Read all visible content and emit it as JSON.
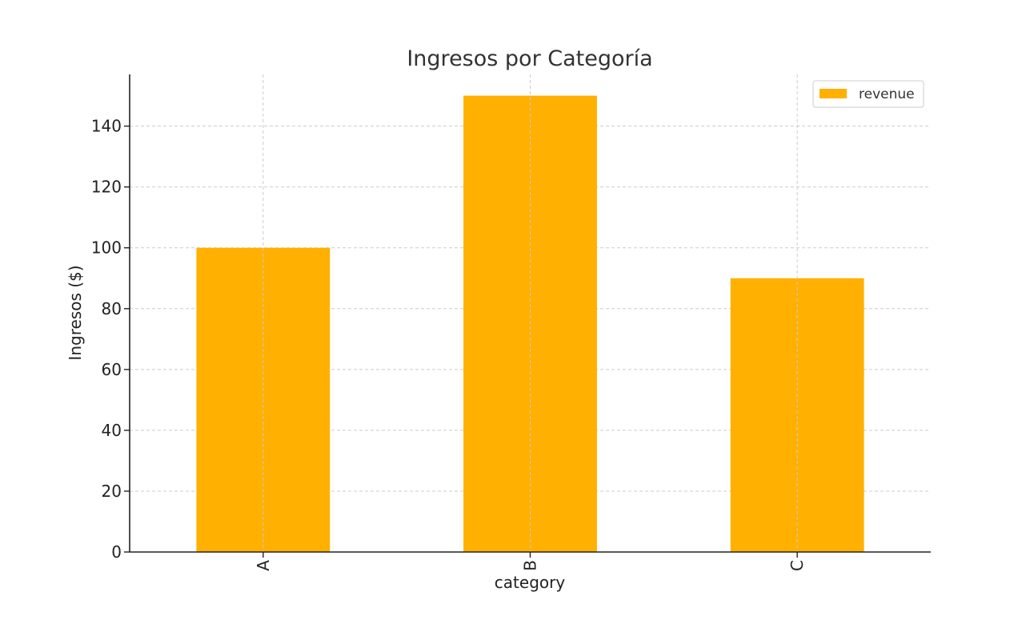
{
  "chart_data": {
    "type": "bar",
    "title": "Ingresos por Categoría",
    "xlabel": "category",
    "ylabel": "Ingresos ($)",
    "categories": [
      "A",
      "B",
      "C"
    ],
    "series": [
      {
        "name": "revenue",
        "values": [
          100,
          150,
          90
        ]
      }
    ],
    "ylim": [
      0,
      157
    ],
    "yticks": [
      0,
      20,
      40,
      60,
      80,
      100,
      120,
      140
    ],
    "grid": true,
    "legend": {
      "position": "top-right",
      "entries": [
        "revenue"
      ]
    },
    "colors": {
      "bar": "#FFB000"
    }
  }
}
